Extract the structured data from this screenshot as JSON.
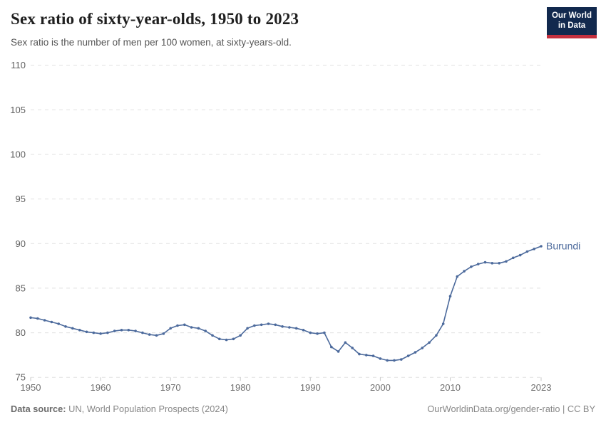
{
  "header": {
    "title": "Sex ratio of sixty-year-olds, 1950 to 2023",
    "subtitle": "Sex ratio is the number of men per 100 women, at sixty-years-old.",
    "logo": {
      "line1": "Our World",
      "line2": "in Data"
    }
  },
  "chart_data": {
    "type": "line",
    "title": "Sex ratio of sixty-year-olds, 1950 to 2023",
    "subtitle": "Sex ratio is the number of men per 100 women, at sixty-years-old.",
    "xlabel": "",
    "ylabel": "",
    "xlim": [
      1950,
      2023
    ],
    "ylim": [
      75,
      110
    ],
    "x_ticks": [
      1950,
      1960,
      1970,
      1980,
      1990,
      2000,
      2010,
      2023
    ],
    "y_ticks": [
      75,
      80,
      85,
      90,
      95,
      100,
      105,
      110
    ],
    "grid": "horizontal-dashed",
    "legend": "end-of-line-label",
    "series": [
      {
        "name": "Burundi",
        "color": "#4c6a9c",
        "x": [
          1950,
          1951,
          1952,
          1953,
          1954,
          1955,
          1956,
          1957,
          1958,
          1959,
          1960,
          1961,
          1962,
          1963,
          1964,
          1965,
          1966,
          1967,
          1968,
          1969,
          1970,
          1971,
          1972,
          1973,
          1974,
          1975,
          1976,
          1977,
          1978,
          1979,
          1980,
          1981,
          1982,
          1983,
          1984,
          1985,
          1986,
          1987,
          1988,
          1989,
          1990,
          1991,
          1992,
          1993,
          1994,
          1995,
          1996,
          1997,
          1998,
          1999,
          2000,
          2001,
          2002,
          2003,
          2004,
          2005,
          2006,
          2007,
          2008,
          2009,
          2010,
          2011,
          2012,
          2013,
          2014,
          2015,
          2016,
          2017,
          2018,
          2019,
          2020,
          2021,
          2022,
          2023
        ],
        "values": [
          81.7,
          81.6,
          81.4,
          81.2,
          81.0,
          80.7,
          80.5,
          80.3,
          80.1,
          80.0,
          79.9,
          80.0,
          80.2,
          80.3,
          80.3,
          80.2,
          80.0,
          79.8,
          79.7,
          79.9,
          80.5,
          80.8,
          80.9,
          80.6,
          80.5,
          80.2,
          79.7,
          79.3,
          79.2,
          79.3,
          79.7,
          80.5,
          80.8,
          80.9,
          81.0,
          80.9,
          80.7,
          80.6,
          80.5,
          80.3,
          80.0,
          79.9,
          80.0,
          78.4,
          77.9,
          78.9,
          78.3,
          77.6,
          77.5,
          77.4,
          77.1,
          76.9,
          76.9,
          77.0,
          77.4,
          77.8,
          78.3,
          78.9,
          79.7,
          81.0,
          84.1,
          86.3,
          86.9,
          87.4,
          87.7,
          87.9,
          87.8,
          87.8,
          88.0,
          88.4,
          88.7,
          89.1,
          89.4,
          89.7
        ]
      }
    ]
  },
  "footer": {
    "source_label": "Data source:",
    "source_text": "UN, World Population Prospects (2024)",
    "url": "OurWorldinData.org/gender-ratio",
    "license": " | CC BY"
  },
  "colors": {
    "line": "#4c6a9c",
    "grid": "#e0e0e0",
    "axis_text": "#6e6e6e",
    "logo_navy": "#12294e",
    "logo_red": "#c5303e"
  }
}
